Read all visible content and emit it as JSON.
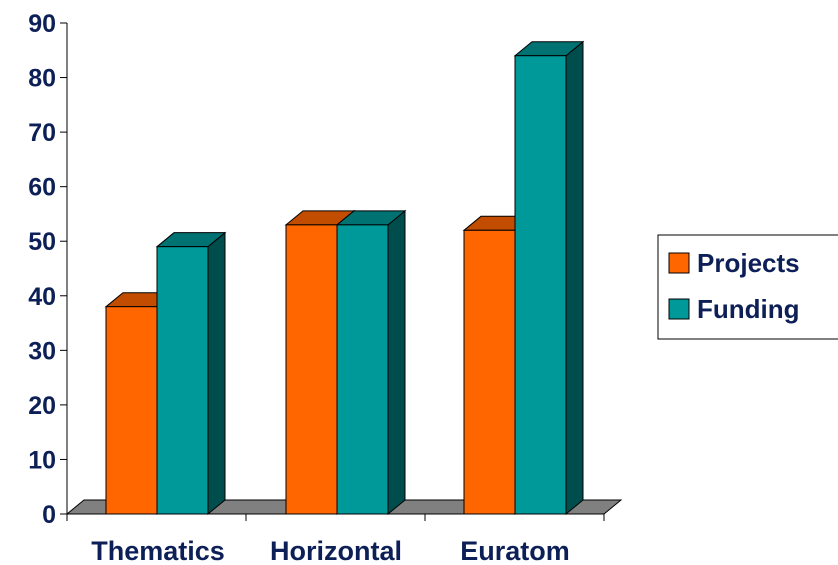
{
  "chart_data": {
    "type": "bar",
    "categories": [
      "Thematics",
      "Horizontal",
      "Euratom"
    ],
    "series": [
      {
        "name": "Projects",
        "values": [
          38,
          53,
          52
        ],
        "color": "#ff6600",
        "top_color": "#c24d00",
        "side_color": "#a63f00"
      },
      {
        "name": "Funding",
        "values": [
          49,
          53,
          84
        ],
        "color": "#009999",
        "top_color": "#007272",
        "side_color": "#004d4d"
      }
    ],
    "ylim": [
      0,
      90
    ],
    "y_ticks": [
      0,
      10,
      20,
      30,
      40,
      50,
      60,
      70,
      80,
      90
    ],
    "grid": false,
    "three_d": true,
    "floor_color": "#808080",
    "legend_position": "right"
  }
}
